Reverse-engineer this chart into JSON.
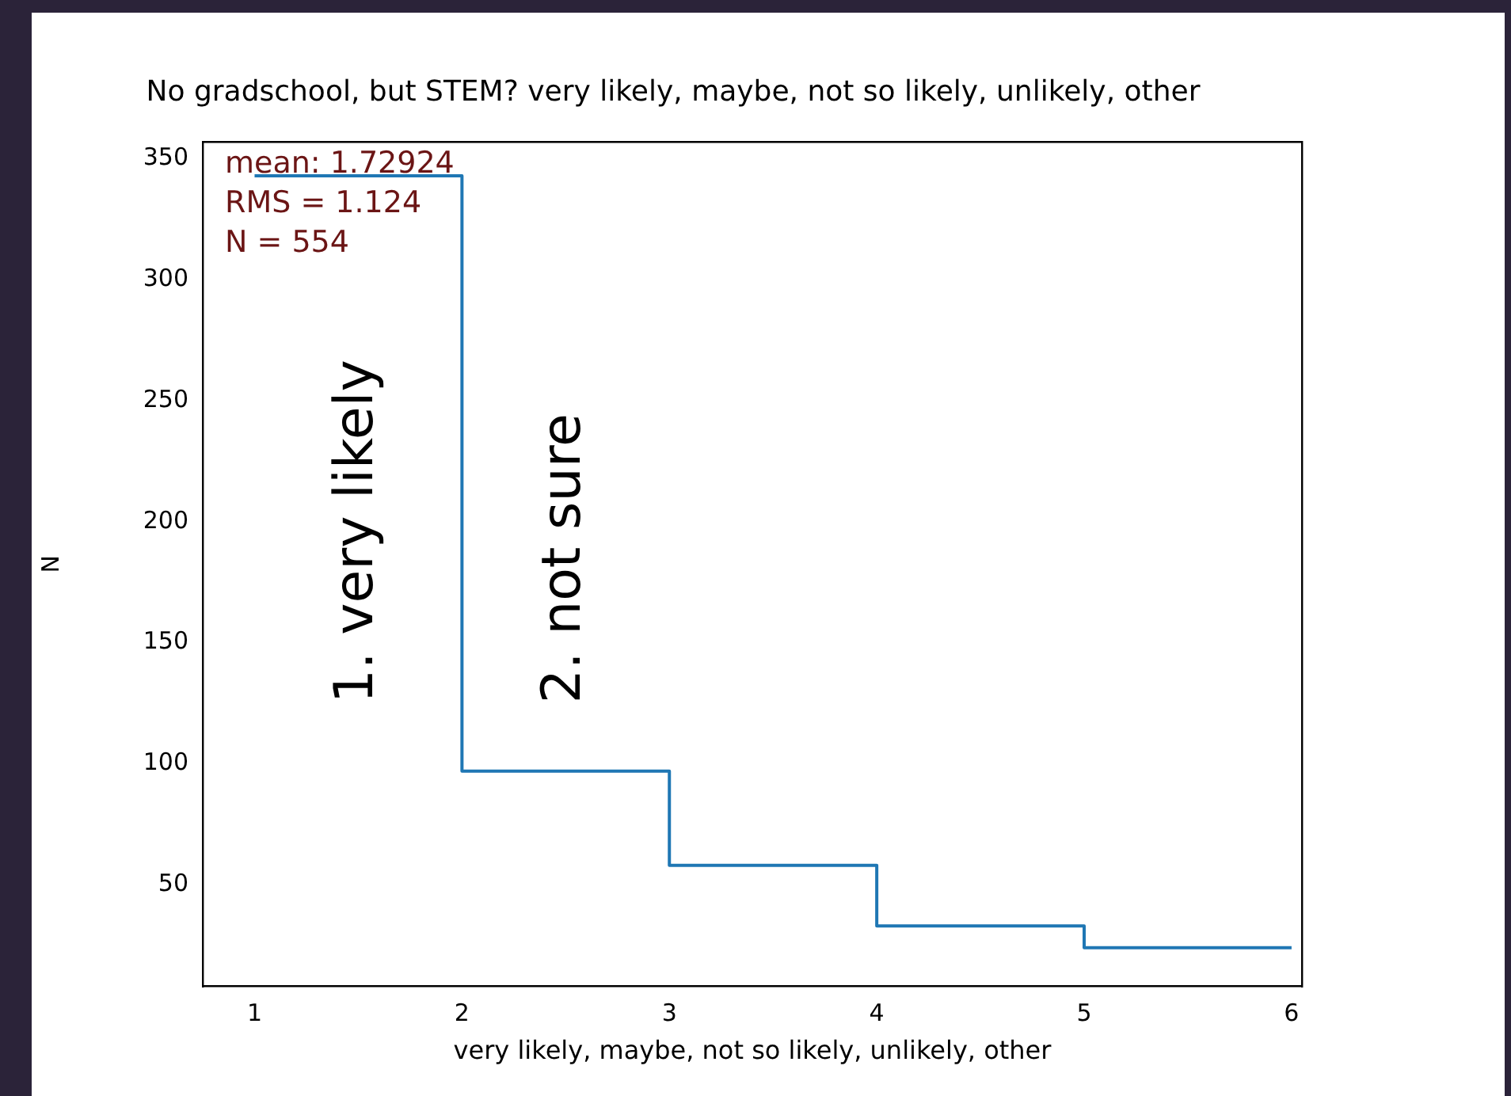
{
  "chart_data": {
    "type": "histogram",
    "title": "No gradschool, but STEM? very likely, maybe, not so likely, unlikely, other",
    "xlabel": "very likely, maybe, not so likely, unlikely, other",
    "ylabel": "N",
    "bins": [
      1,
      2,
      3,
      4,
      5,
      6
    ],
    "values": [
      343,
      97,
      58,
      33,
      24
    ],
    "color": "#1f77b4",
    "xlim": [
      0.75,
      6.05
    ],
    "xticks": [
      1,
      2,
      3,
      4,
      5,
      6
    ],
    "ylim": [
      8,
      357
    ],
    "yticks": [
      50,
      100,
      150,
      200,
      250,
      300,
      350
    ],
    "grid": false,
    "legend": false,
    "annotations": [
      "mean: 1.72924",
      "RMS = 1.124",
      "N = 554",
      "1. very likely",
      "2. not sure"
    ]
  }
}
